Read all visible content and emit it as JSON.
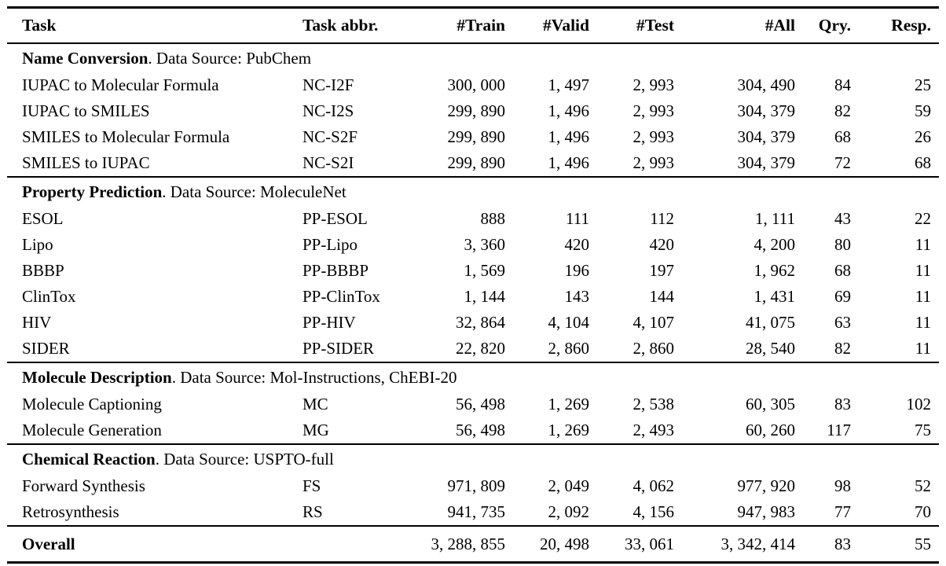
{
  "page": {
    "background_color": "#ffffff",
    "text_color": "#000000",
    "rule_color": "#000000"
  },
  "table": {
    "columns": [
      {
        "key": "task",
        "label": "Task",
        "align": "left"
      },
      {
        "key": "abbr",
        "label": "Task abbr.",
        "align": "left"
      },
      {
        "key": "train",
        "label": "#Train",
        "align": "right"
      },
      {
        "key": "valid",
        "label": "#Valid",
        "align": "right"
      },
      {
        "key": "test",
        "label": "#Test",
        "align": "right"
      },
      {
        "key": "all",
        "label": "#All",
        "align": "right"
      },
      {
        "key": "qry",
        "label": "Qry.",
        "align": "right"
      },
      {
        "key": "resp",
        "label": "Resp.",
        "align": "right"
      }
    ],
    "sections": [
      {
        "title": "Name Conversion",
        "suffix": ". Data Source: PubChem",
        "rows": [
          [
            "IUPAC to Molecular Formula",
            "NC-I2F",
            "300, 000",
            "1, 497",
            "2, 993",
            "304, 490",
            "84",
            "25"
          ],
          [
            "IUPAC to SMILES",
            "NC-I2S",
            "299, 890",
            "1, 496",
            "2, 993",
            "304, 379",
            "82",
            "59"
          ],
          [
            "SMILES to Molecular Formula",
            "NC-S2F",
            "299, 890",
            "1, 496",
            "2, 993",
            "304, 379",
            "68",
            "26"
          ],
          [
            "SMILES to IUPAC",
            "NC-S2I",
            "299, 890",
            "1, 496",
            "2, 993",
            "304, 379",
            "72",
            "68"
          ]
        ]
      },
      {
        "title": "Property Prediction",
        "suffix": ". Data Source: MoleculeNet",
        "rows": [
          [
            "ESOL",
            "PP-ESOL",
            "888",
            "111",
            "112",
            "1, 111",
            "43",
            "22"
          ],
          [
            "Lipo",
            "PP-Lipo",
            "3, 360",
            "420",
            "420",
            "4, 200",
            "80",
            "11"
          ],
          [
            "BBBP",
            "PP-BBBP",
            "1, 569",
            "196",
            "197",
            "1, 962",
            "68",
            "11"
          ],
          [
            "ClinTox",
            "PP-ClinTox",
            "1, 144",
            "143",
            "144",
            "1, 431",
            "69",
            "11"
          ],
          [
            "HIV",
            "PP-HIV",
            "32, 864",
            "4, 104",
            "4, 107",
            "41, 075",
            "63",
            "11"
          ],
          [
            "SIDER",
            "PP-SIDER",
            "22, 820",
            "2, 860",
            "2, 860",
            "28, 540",
            "82",
            "11"
          ]
        ]
      },
      {
        "title": "Molecule Description",
        "suffix": ". Data Source: Mol-Instructions, ChEBI-20",
        "rows": [
          [
            "Molecule Captioning",
            "MC",
            "56, 498",
            "1, 269",
            "2, 538",
            "60, 305",
            "83",
            "102"
          ],
          [
            "Molecule Generation",
            "MG",
            "56, 498",
            "1, 269",
            "2, 493",
            "60, 260",
            "117",
            "75"
          ]
        ]
      },
      {
        "title": "Chemical Reaction",
        "suffix": ". Data Source: USPTO-full",
        "rows": [
          [
            "Forward Synthesis",
            "FS",
            "971, 809",
            "2, 049",
            "4, 062",
            "977, 920",
            "98",
            "52"
          ],
          [
            "Retrosynthesis",
            "RS",
            "941, 735",
            "2, 092",
            "4, 156",
            "947, 983",
            "77",
            "70"
          ]
        ]
      }
    ],
    "overall": {
      "label": "Overall",
      "abbr": "",
      "values": [
        "3, 288, 855",
        "20, 498",
        "33, 061",
        "3, 342, 414",
        "83",
        "55"
      ]
    }
  }
}
